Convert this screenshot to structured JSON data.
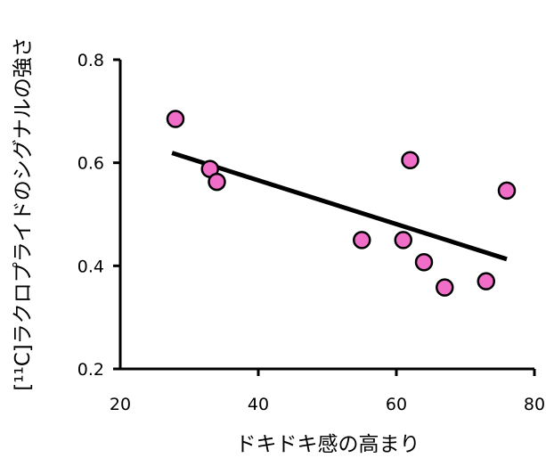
{
  "chart_data": {
    "type": "scatter",
    "xlabel": "ドキドキ感の高まり",
    "ylabel": "[¹¹C]ラクロプライドのシグナルの強さ",
    "xlim": [
      20,
      80
    ],
    "ylim": [
      0.2,
      0.8
    ],
    "xticks": [
      "20",
      "40",
      "60",
      "80"
    ],
    "yticks": [
      "0.2",
      "0.4",
      "0.6",
      "0.8"
    ],
    "xtick_values": [
      20,
      40,
      60,
      80
    ],
    "ytick_values": [
      0.2,
      0.4,
      0.6,
      0.8
    ],
    "grid": false,
    "legend": "none",
    "points": [
      {
        "x": 28,
        "y": 0.685
      },
      {
        "x": 33,
        "y": 0.588
      },
      {
        "x": 34,
        "y": 0.563
      },
      {
        "x": 55,
        "y": 0.45
      },
      {
        "x": 61,
        "y": 0.45
      },
      {
        "x": 62,
        "y": 0.605
      },
      {
        "x": 64,
        "y": 0.407
      },
      {
        "x": 67,
        "y": 0.358
      },
      {
        "x": 73,
        "y": 0.37
      },
      {
        "x": 76,
        "y": 0.546
      }
    ],
    "trendline": {
      "x": [
        27.5,
        76
      ],
      "y": [
        0.619,
        0.413
      ]
    },
    "colors": {
      "point_fill": "#f06ec8",
      "point_stroke": "#000000",
      "line": "#000000"
    }
  }
}
